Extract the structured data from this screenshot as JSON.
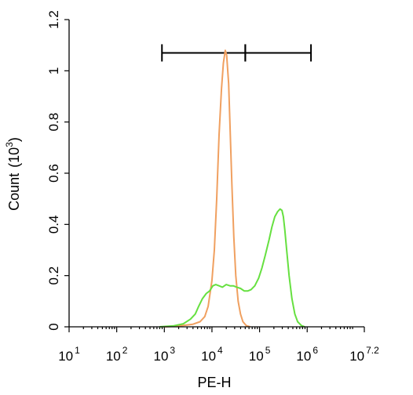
{
  "chart_data": {
    "type": "line",
    "xlabel": "PE-H",
    "ylabel": "Count",
    "ylabel_unit_base": "10",
    "ylabel_unit_exp": "3",
    "x_scale": "log",
    "xlim": [
      1,
      7.2
    ],
    "ylim": [
      0,
      1.2
    ],
    "x_ticks": [
      {
        "base": "10",
        "exp": "1",
        "value": 1
      },
      {
        "base": "10",
        "exp": "2",
        "value": 2
      },
      {
        "base": "10",
        "exp": "3",
        "value": 3
      },
      {
        "base": "10",
        "exp": "4",
        "value": 4
      },
      {
        "base": "10",
        "exp": "5",
        "value": 5
      },
      {
        "base": "10",
        "exp": "6",
        "value": 6
      },
      {
        "base": "10",
        "exp": "7.2",
        "value": 7.2
      }
    ],
    "y_ticks": [
      "0",
      "0.2",
      "0.4",
      "0.6",
      "0.8",
      "1",
      "1.2"
    ],
    "y_tick_values": [
      0,
      0.2,
      0.4,
      0.6,
      0.8,
      1.0,
      1.2
    ],
    "grid": false,
    "gates": [
      {
        "from": 2.95,
        "to": 4.7,
        "y": 1.07
      },
      {
        "from": 4.7,
        "to": 6.08,
        "y": 1.07
      }
    ],
    "series": [
      {
        "color": "#f0a060",
        "points": [
          [
            3.0,
            0.0
          ],
          [
            3.3,
            0.003
          ],
          [
            3.6,
            0.01
          ],
          [
            3.75,
            0.02
          ],
          [
            3.85,
            0.04
          ],
          [
            3.92,
            0.08
          ],
          [
            4.0,
            0.18
          ],
          [
            4.05,
            0.3
          ],
          [
            4.1,
            0.5
          ],
          [
            4.15,
            0.75
          ],
          [
            4.2,
            0.93
          ],
          [
            4.24,
            1.03
          ],
          [
            4.28,
            1.08
          ],
          [
            4.31,
            1.06
          ],
          [
            4.35,
            0.95
          ],
          [
            4.38,
            0.78
          ],
          [
            4.42,
            0.55
          ],
          [
            4.46,
            0.35
          ],
          [
            4.5,
            0.2
          ],
          [
            4.55,
            0.1
          ],
          [
            4.6,
            0.05
          ],
          [
            4.65,
            0.02
          ],
          [
            4.72,
            0.005
          ],
          [
            4.8,
            0.0
          ]
        ]
      },
      {
        "color": "#66e040",
        "points": [
          [
            2.9,
            0.0
          ],
          [
            3.2,
            0.004
          ],
          [
            3.4,
            0.012
          ],
          [
            3.55,
            0.03
          ],
          [
            3.65,
            0.05
          ],
          [
            3.72,
            0.08
          ],
          [
            3.8,
            0.11
          ],
          [
            3.88,
            0.13
          ],
          [
            3.95,
            0.14
          ],
          [
            4.02,
            0.16
          ],
          [
            4.08,
            0.165
          ],
          [
            4.15,
            0.16
          ],
          [
            4.22,
            0.155
          ],
          [
            4.3,
            0.165
          ],
          [
            4.38,
            0.16
          ],
          [
            4.45,
            0.16
          ],
          [
            4.52,
            0.155
          ],
          [
            4.6,
            0.15
          ],
          [
            4.68,
            0.14
          ],
          [
            4.75,
            0.14
          ],
          [
            4.82,
            0.145
          ],
          [
            4.9,
            0.16
          ],
          [
            4.98,
            0.19
          ],
          [
            5.05,
            0.23
          ],
          [
            5.12,
            0.28
          ],
          [
            5.2,
            0.34
          ],
          [
            5.26,
            0.39
          ],
          [
            5.32,
            0.43
          ],
          [
            5.38,
            0.45
          ],
          [
            5.43,
            0.46
          ],
          [
            5.47,
            0.455
          ],
          [
            5.5,
            0.43
          ],
          [
            5.53,
            0.38
          ],
          [
            5.57,
            0.3
          ],
          [
            5.62,
            0.2
          ],
          [
            5.68,
            0.11
          ],
          [
            5.74,
            0.05
          ],
          [
            5.8,
            0.02
          ],
          [
            5.88,
            0.005
          ],
          [
            5.95,
            0.0
          ]
        ]
      }
    ]
  }
}
